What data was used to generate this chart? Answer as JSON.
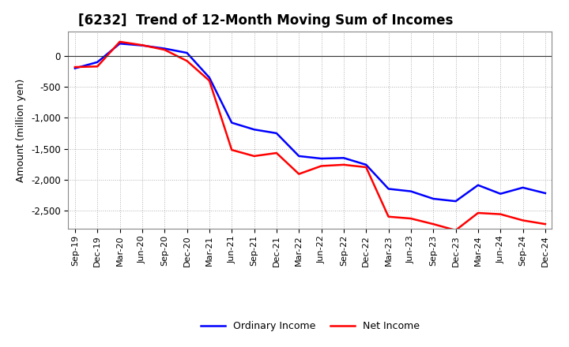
{
  "title": "[6232]  Trend of 12-Month Moving Sum of Incomes",
  "ylabel": "Amount (million yen)",
  "x_labels": [
    "Sep-19",
    "Dec-19",
    "Mar-20",
    "Jun-20",
    "Sep-20",
    "Dec-20",
    "Mar-21",
    "Jun-21",
    "Sep-21",
    "Dec-21",
    "Mar-22",
    "Jun-22",
    "Sep-22",
    "Dec-22",
    "Mar-23",
    "Jun-23",
    "Sep-23",
    "Dec-23",
    "Mar-24",
    "Jun-24",
    "Sep-24",
    "Dec-24"
  ],
  "ordinary_income": [
    -200,
    -100,
    200,
    170,
    120,
    50,
    -350,
    -1080,
    -1190,
    -1250,
    -1620,
    -1660,
    -1650,
    -1760,
    -2150,
    -2190,
    -2310,
    -2350,
    -2090,
    -2230,
    -2130,
    -2220
  ],
  "net_income": [
    -180,
    -170,
    230,
    175,
    100,
    -80,
    -400,
    -1520,
    -1620,
    -1570,
    -1910,
    -1780,
    -1760,
    -1800,
    -2600,
    -2630,
    -2720,
    -2820,
    -2540,
    -2560,
    -2660,
    -2720
  ],
  "line_color_ordinary": "#0000ff",
  "line_color_net": "#ff0000",
  "ylim_min": -2800,
  "ylim_max": 400,
  "yticks": [
    0,
    -500,
    -1000,
    -1500,
    -2000,
    -2500
  ],
  "bg_color": "#ffffff",
  "grid_color": "#aaaaaa",
  "title_fontsize": 12,
  "axis_label_fontsize": 9,
  "tick_fontsize": 8,
  "legend_fontsize": 9
}
